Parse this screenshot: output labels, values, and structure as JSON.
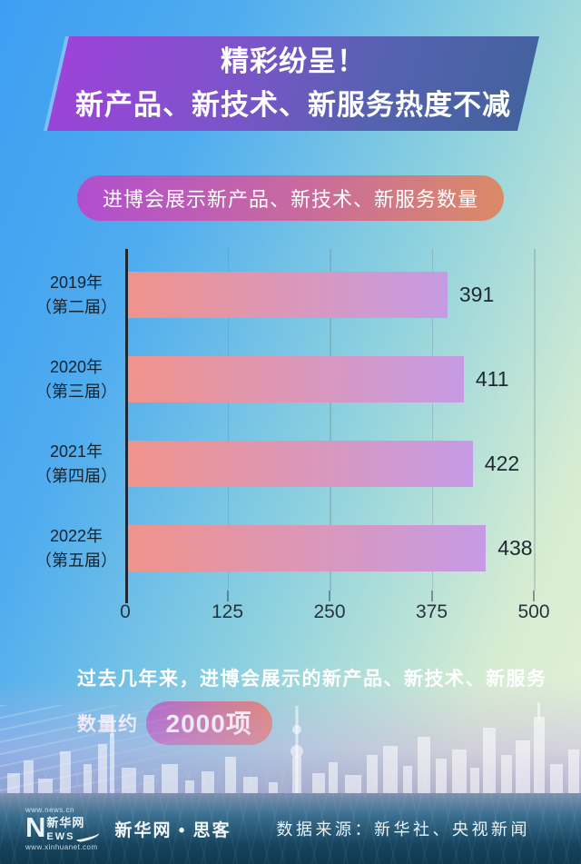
{
  "banner": {
    "line1": "精彩纷呈！",
    "line2": "新产品、新技术、新服务热度不减"
  },
  "subtitle": {
    "label": "进博会展示新产品、新技术、新服务数量"
  },
  "chart_data": {
    "type": "bar",
    "orientation": "horizontal",
    "title": "进博会展示新产品、新技术、新服务数量",
    "categories": [
      {
        "line1": "2019年",
        "line2": "（第二届）"
      },
      {
        "line1": "2020年",
        "line2": "（第三届）"
      },
      {
        "line1": "2021年",
        "line2": "（第四届）"
      },
      {
        "line1": "2022年",
        "line2": "（第五届）"
      }
    ],
    "values": [
      391,
      411,
      422,
      438
    ],
    "xlim": [
      0,
      500
    ],
    "xticks": [
      0,
      125,
      250,
      375,
      500
    ],
    "grid": true,
    "legend": false,
    "bar_gradient": [
      "#F0938B",
      "#C69BE5"
    ]
  },
  "footnote": {
    "line1": "过去几年来，进博会展示的新产品、新技术、新服务",
    "line2_prefix": "数量约",
    "highlight": "2000项"
  },
  "footer": {
    "logo": {
      "url_top": "www.news.cn",
      "n": "N",
      "name": "新华网",
      "ews": "EWS",
      "url_bottom": "www.xinhuanet.com"
    },
    "brand": "新华网 • 思客",
    "source": "数据来源：新华社、央视新闻"
  },
  "colors": {
    "banner_left": "#9C43D8",
    "banner_right": "#44629F",
    "pill_left": "#B14ECF",
    "pill_right": "#DB8A67",
    "bar_left": "#F0938B",
    "bar_right": "#C69BE5",
    "footer_dark": "#0F3A50"
  }
}
